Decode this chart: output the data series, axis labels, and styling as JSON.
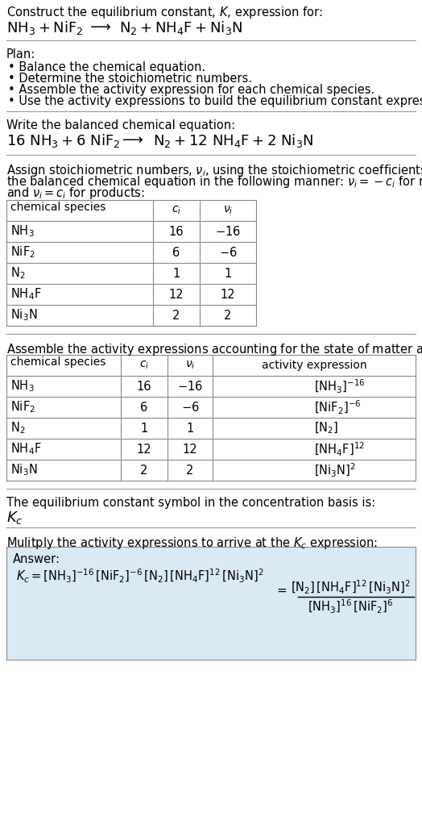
{
  "bg_color": "#ffffff",
  "text_color": "#000000",
  "table_border_color": "#888888",
  "answer_box_color": "#daeaf5",
  "sections": {
    "title1": "Construct the equilibrium constant, $K$, expression for:",
    "title2_parts": [
      "$\\mathrm{NH_3 + NiF_2}$",
      "$\\longrightarrow$",
      "$\\mathrm{N_2 + NH_4F + Ni_3N}$"
    ],
    "plan_header": "Plan:",
    "plan_items": [
      "• Balance the chemical equation.",
      "• Determine the stoichiometric numbers.",
      "• Assemble the activity expression for each chemical species.",
      "• Use the activity expressions to build the equilibrium constant expression."
    ],
    "balanced_header": "Write the balanced chemical equation:",
    "balanced_parts": [
      "$\\mathrm{16\\ NH_3 + 6\\ NiF_2}$",
      "$\\longrightarrow$",
      "$\\mathrm{N_2 + 12\\ NH_4F + 2\\ Ni_3N}$"
    ],
    "stoich_text": [
      "Assign stoichiometric numbers, $\\nu_i$, using the stoichiometric coefficients, $c_i$, from",
      "the balanced chemical equation in the following manner: $\\nu_i = -c_i$ for reactants",
      "and $\\nu_i = c_i$ for products:"
    ],
    "table1_headers": [
      "chemical species",
      "$c_i$",
      "$\\nu_i$"
    ],
    "table1_rows": [
      [
        "$\\mathrm{NH_3}$",
        "16",
        "$-16$"
      ],
      [
        "$\\mathrm{NiF_2}$",
        "6",
        "$-6$"
      ],
      [
        "$\\mathrm{N_2}$",
        "1",
        "1"
      ],
      [
        "$\\mathrm{NH_4F}$",
        "12",
        "12"
      ],
      [
        "$\\mathrm{Ni_3N}$",
        "2",
        "2"
      ]
    ],
    "activity_header": "Assemble the activity expressions accounting for the state of matter and $\\nu_i$:",
    "table2_headers": [
      "chemical species",
      "$c_i$",
      "$\\nu_i$",
      "activity expression"
    ],
    "table2_rows": [
      [
        "$\\mathrm{NH_3}$",
        "16",
        "$-16$",
        "$[\\mathrm{NH_3}]^{-16}$"
      ],
      [
        "$\\mathrm{NiF_2}$",
        "6",
        "$-6$",
        "$[\\mathrm{NiF_2}]^{-6}$"
      ],
      [
        "$\\mathrm{N_2}$",
        "1",
        "1",
        "$[\\mathrm{N_2}]$"
      ],
      [
        "$\\mathrm{NH_4F}$",
        "12",
        "12",
        "$[\\mathrm{NH_4F}]^{12}$"
      ],
      [
        "$\\mathrm{Ni_3N}$",
        "2",
        "2",
        "$[\\mathrm{Ni_3N}]^{2}$"
      ]
    ],
    "kc_header": "The equilibrium constant symbol in the concentration basis is:",
    "kc_symbol": "$K_c$",
    "multiply_header": "Mulitply the activity expressions to arrive at the $K_c$ expression:",
    "answer_label": "Answer:",
    "answer_kc_eq": "$K_c = [\\mathrm{NH_3}]^{-16}\\,[\\mathrm{NiF_2}]^{-6}\\,[\\mathrm{N_2}]\\,[\\mathrm{NH_4F}]^{12}\\,[\\mathrm{Ni_3N}]^{2}$",
    "answer_frac_num": "$[\\mathrm{N_2}]\\,[\\mathrm{NH_4F}]^{12}\\,[\\mathrm{Ni_3N}]^{2}$",
    "answer_frac_den": "$[\\mathrm{NH_3}]^{16}\\,[\\mathrm{NiF_2}]^{6}$"
  }
}
